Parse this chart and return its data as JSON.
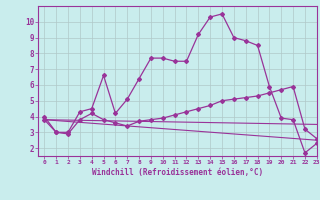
{
  "xlabel": "Windchill (Refroidissement éolien,°C)",
  "xlim": [
    -0.5,
    23
  ],
  "ylim": [
    1.5,
    11
  ],
  "yticks": [
    2,
    3,
    4,
    5,
    6,
    7,
    8,
    9,
    10
  ],
  "xticks": [
    0,
    1,
    2,
    3,
    4,
    5,
    6,
    7,
    8,
    9,
    10,
    11,
    12,
    13,
    14,
    15,
    16,
    17,
    18,
    19,
    20,
    21,
    22,
    23
  ],
  "bg_color": "#c9eded",
  "line_color": "#993399",
  "grid_color": "#b0c8c8",
  "line1_x": [
    0,
    1,
    2,
    3,
    4,
    5,
    6,
    7,
    8,
    9,
    10,
    11,
    12,
    13,
    14,
    15,
    16,
    17,
    18,
    19,
    20,
    21,
    22,
    23
  ],
  "line1_y": [
    4.0,
    3.0,
    3.0,
    4.3,
    4.5,
    6.6,
    4.2,
    5.1,
    6.4,
    7.7,
    7.7,
    7.5,
    7.5,
    9.2,
    10.3,
    10.5,
    9.0,
    8.8,
    8.5,
    5.9,
    3.9,
    3.8,
    1.7,
    2.3
  ],
  "line2_x": [
    0,
    1,
    2,
    3,
    4,
    5,
    6,
    7,
    8,
    9,
    10,
    11,
    12,
    13,
    14,
    15,
    16,
    17,
    18,
    19,
    20,
    21,
    22,
    23
  ],
  "line2_y": [
    3.8,
    3.0,
    2.9,
    3.8,
    4.2,
    3.8,
    3.6,
    3.4,
    3.7,
    3.8,
    3.9,
    4.1,
    4.3,
    4.5,
    4.7,
    5.0,
    5.1,
    5.2,
    5.3,
    5.5,
    5.7,
    5.9,
    3.2,
    2.6
  ],
  "line3_x": [
    0,
    23
  ],
  "line3_y": [
    3.8,
    3.5
  ],
  "line4_x": [
    0,
    23
  ],
  "line4_y": [
    3.8,
    2.5
  ]
}
